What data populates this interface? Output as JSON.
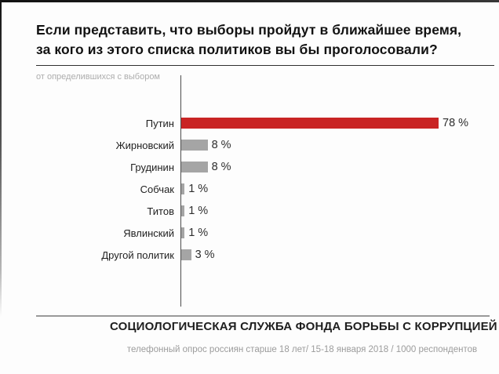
{
  "header": {
    "title_line1": "Если представить, что выборы пройдут в ближайшее время,",
    "title_line2": "за кого из этого списка политиков вы бы проголосовали?",
    "subtitle": "от определившихся с выбором"
  },
  "chart_data": {
    "type": "bar",
    "orientation": "horizontal",
    "title": "Если представить, что выборы пройдут в ближайшее время, за кого из этого списка политиков вы бы проголосовали?",
    "subtitle": "от определившихся с выбором",
    "categories": [
      "Путин",
      "Жирновский",
      "Грудинин",
      "Собчак",
      "Титов",
      "Явлинский",
      "Другой политик"
    ],
    "values": [
      78,
      8,
      8,
      1,
      1,
      1,
      3
    ],
    "value_labels": [
      "78 %",
      "8 %",
      "8 %",
      "1 %",
      "1 %",
      "1 %",
      "3 %"
    ],
    "unit": "%",
    "xlim": [
      0,
      80
    ],
    "grid": false,
    "legend": false,
    "bar_colors": [
      "#c92424",
      "#a5a5a5",
      "#a5a5a5",
      "#a5a5a5",
      "#a5a5a5",
      "#a5a5a5",
      "#a5a5a5"
    ],
    "highlight_color": "#c92424",
    "default_color": "#a5a5a5"
  },
  "footer": {
    "source": "СОЦИОЛОГИЧЕСКАЯ СЛУЖБА ФОНДА БОРЬБЫ С КОРРУПЦИЕЙ",
    "note": "телефонный опрос россиян старше 18 лет/ 15-18 января 2018 / 1000 респондентов",
    "dot_color": "#c0392b"
  }
}
